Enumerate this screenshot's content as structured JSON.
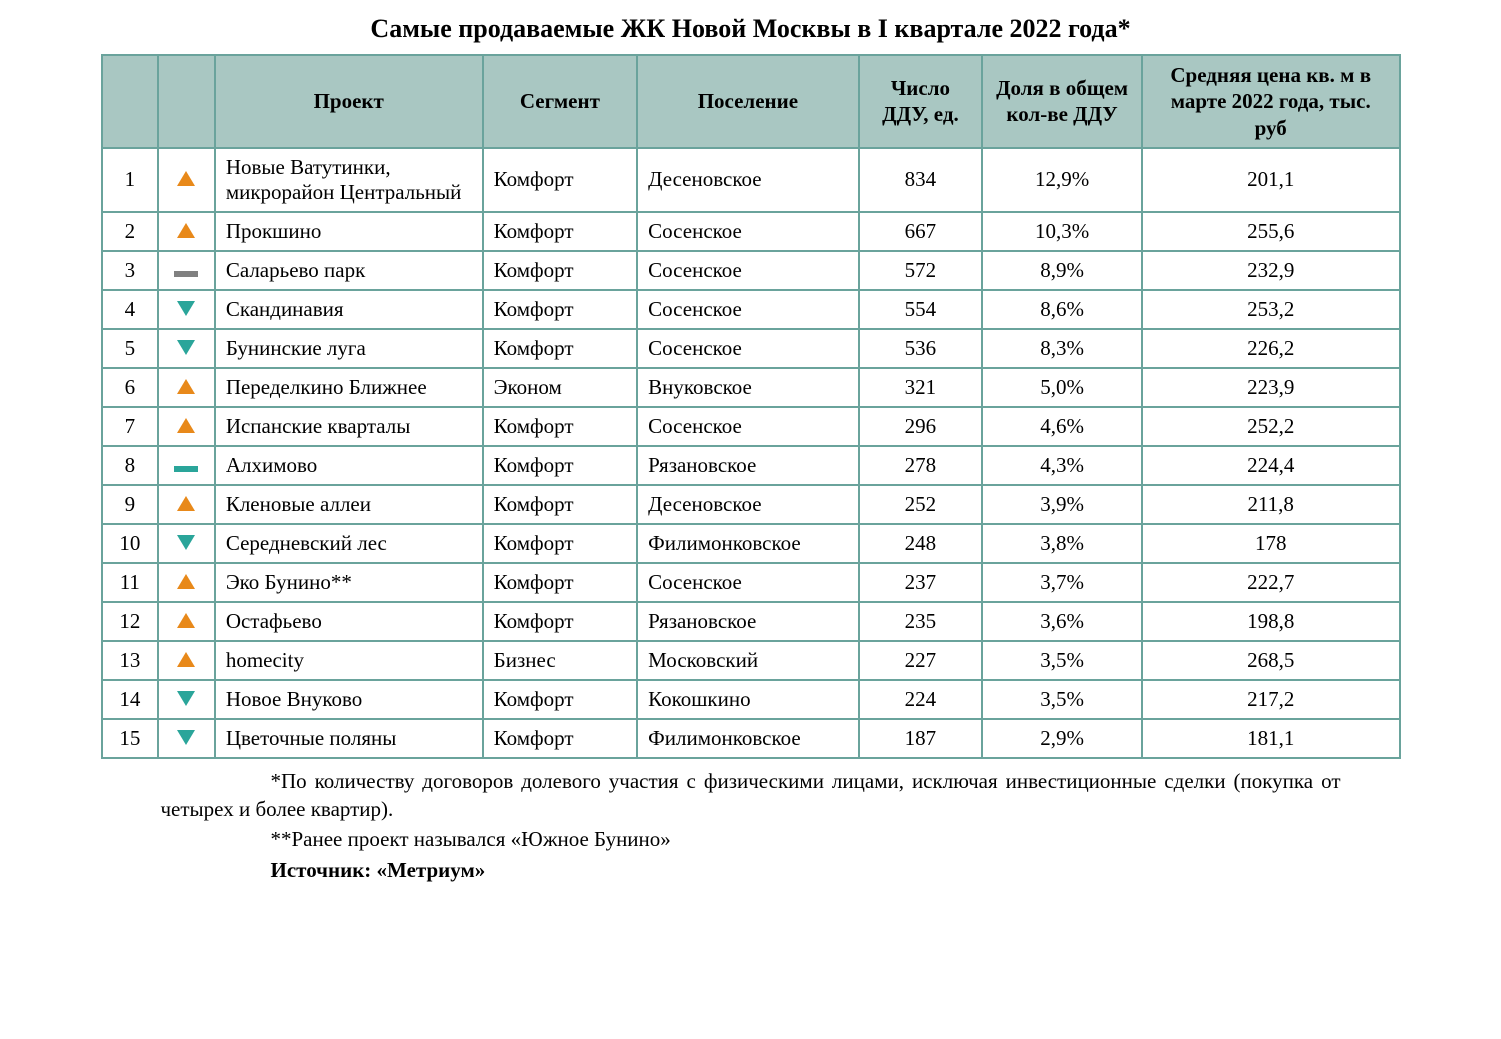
{
  "title": "Самые продаваемые ЖК Новой Москвы в I квартале 2022 года*",
  "columns": {
    "project": "Проект",
    "segment": "Сегмент",
    "settlement": "Поселение",
    "ddu": "Число ДДУ, ед.",
    "share": "Доля в общем кол-ве ДДУ",
    "price": "Средняя цена кв. м в марте 2022 года, тыс. руб"
  },
  "trend_icons": {
    "up": {
      "shape": "triangle-up",
      "color": "#e8891a"
    },
    "down": {
      "shape": "triangle-down",
      "color": "#2aa59a"
    },
    "same_gray": {
      "shape": "dash",
      "color": "#808080"
    },
    "same_teal": {
      "shape": "dash",
      "color": "#2aa59a"
    }
  },
  "rows": [
    {
      "rank": "1",
      "trend": "up",
      "project": "Новые Ватутинки, микрорайон Центральный",
      "segment": "Комфорт",
      "settlement": "Десеновское",
      "ddu": "834",
      "share": "12,9%",
      "price": "201,1"
    },
    {
      "rank": "2",
      "trend": "up",
      "project": "Прокшино",
      "segment": "Комфорт",
      "settlement": "Сосенское",
      "ddu": "667",
      "share": "10,3%",
      "price": "255,6"
    },
    {
      "rank": "3",
      "trend": "same_gray",
      "project": "Саларьево парк",
      "segment": "Комфорт",
      "settlement": "Сосенское",
      "ddu": "572",
      "share": "8,9%",
      "price": "232,9"
    },
    {
      "rank": "4",
      "trend": "down",
      "project": "Скандинавия",
      "segment": "Комфорт",
      "settlement": "Сосенское",
      "ddu": "554",
      "share": "8,6%",
      "price": "253,2"
    },
    {
      "rank": "5",
      "trend": "down",
      "project": "Бунинские луга",
      "segment": "Комфорт",
      "settlement": "Сосенское",
      "ddu": "536",
      "share": "8,3%",
      "price": "226,2"
    },
    {
      "rank": "6",
      "trend": "up",
      "project": "Переделкино Ближнее",
      "segment": "Эконом",
      "settlement": "Внуковское",
      "ddu": "321",
      "share": "5,0%",
      "price": "223,9"
    },
    {
      "rank": "7",
      "trend": "up",
      "project": "Испанские кварталы",
      "segment": "Комфорт",
      "settlement": "Сосенское",
      "ddu": "296",
      "share": "4,6%",
      "price": "252,2"
    },
    {
      "rank": "8",
      "trend": "same_teal",
      "project": "Алхимово",
      "segment": "Комфорт",
      "settlement": "Рязановское",
      "ddu": "278",
      "share": "4,3%",
      "price": "224,4"
    },
    {
      "rank": "9",
      "trend": "up",
      "project": "Кленовые аллеи",
      "segment": "Комфорт",
      "settlement": "Десеновское",
      "ddu": "252",
      "share": "3,9%",
      "price": "211,8"
    },
    {
      "rank": "10",
      "trend": "down",
      "project": "Середневский лес",
      "segment": "Комфорт",
      "settlement": "Филимонковское",
      "ddu": "248",
      "share": "3,8%",
      "price": "178"
    },
    {
      "rank": "11",
      "trend": "up",
      "project": "Эко Бунино**",
      "segment": "Комфорт",
      "settlement": "Сосенское",
      "ddu": "237",
      "share": "3,7%",
      "price": "222,7"
    },
    {
      "rank": "12",
      "trend": "up",
      "project": "Остафьево",
      "segment": "Комфорт",
      "settlement": "Рязановское",
      "ddu": "235",
      "share": "3,6%",
      "price": "198,8"
    },
    {
      "rank": "13",
      "trend": "up",
      "project": "homecity",
      "segment": "Бизнес",
      "settlement": "Московский",
      "ddu": "227",
      "share": "3,5%",
      "price": "268,5"
    },
    {
      "rank": "14",
      "trend": "down",
      "project": "Новое Внуково",
      "segment": "Комфорт",
      "settlement": "Кокошкино",
      "ddu": "224",
      "share": "3,5%",
      "price": "217,2"
    },
    {
      "rank": "15",
      "trend": "down",
      "project": "Цветочные поляны",
      "segment": "Комфорт",
      "settlement": "Филимонковское",
      "ddu": "187",
      "share": "2,9%",
      "price": "181,1"
    }
  ],
  "footnotes": {
    "note1": "*По количеству договоров долевого участия с физическими лицами, исключая инвестиционные сделки (покупка от четырех и более квартир).",
    "note2": "**Ранее проект назывался «Южное Бунино»",
    "source": "Источник: «Метриум»"
  },
  "style": {
    "border_color": "#6aa39c",
    "header_bg": "#a9c7c2",
    "background": "#ffffff",
    "text_color": "#000000",
    "font_family": "Times New Roman",
    "title_fontsize": 26,
    "cell_fontsize": 21
  }
}
